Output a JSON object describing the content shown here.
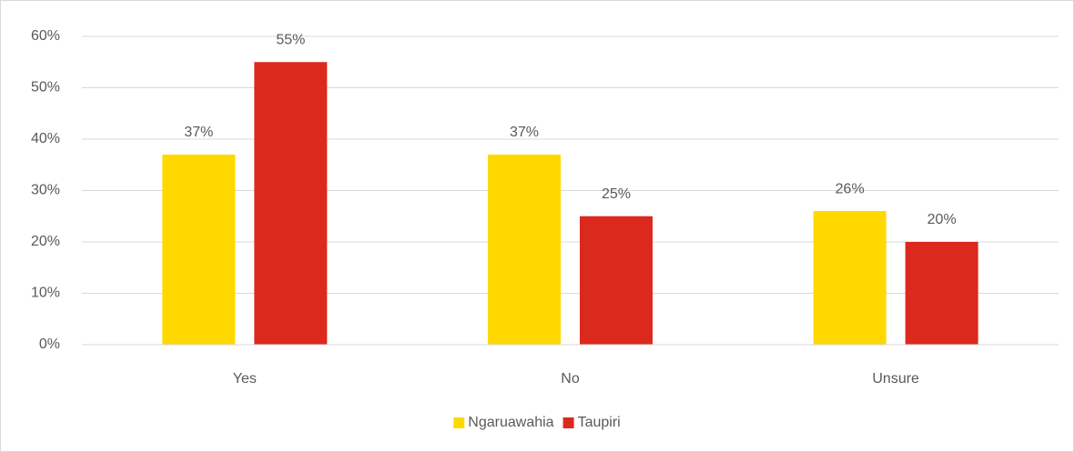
{
  "chart_data": {
    "type": "bar",
    "categories": [
      "Yes",
      "No",
      "Unsure"
    ],
    "series": [
      {
        "name": "Ngaruawahia",
        "color": "#ffd800",
        "values": [
          37,
          37,
          26
        ],
        "value_labels": [
          "37%",
          "37%",
          "26%"
        ]
      },
      {
        "name": "Taupiri",
        "color": "#dc291e",
        "values": [
          55,
          25,
          20
        ],
        "value_labels": [
          "55%",
          "25%",
          "20%"
        ]
      }
    ],
    "ylim": [
      0,
      60
    ],
    "yticks": [
      {
        "value": 0,
        "label": "0%"
      },
      {
        "value": 10,
        "label": "10%"
      },
      {
        "value": 20,
        "label": "20%"
      },
      {
        "value": 30,
        "label": "30%"
      },
      {
        "value": 40,
        "label": "40%"
      },
      {
        "value": 50,
        "label": "50%"
      },
      {
        "value": 60,
        "label": "60%"
      }
    ],
    "grid": true,
    "legend": "bottom"
  }
}
